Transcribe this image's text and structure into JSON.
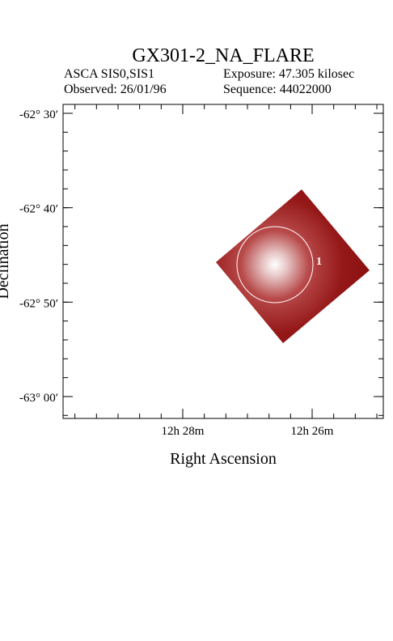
{
  "chart_data": {
    "type": "image",
    "title": "GX301-2_NA_FLARE",
    "instrument": "ASCA SIS0,SIS1",
    "exposure": "Exposure: 47.305 kilosec",
    "observed": "Observed: 26/01/96",
    "sequence": "Sequence: 44022000",
    "x_label": "Right Ascension",
    "y_label": "Declination",
    "xlim": [
      12.4975,
      12.415
    ],
    "ylim": [
      -63.0386,
      -62.4843
    ],
    "xticks": [
      {
        "value": 12.46667,
        "label": "12h 28m"
      },
      {
        "value": 12.43333,
        "label": "12h 26m"
      }
    ],
    "yticks": [
      {
        "value": -62.5,
        "label": "-62° 30′"
      },
      {
        "value": -62.66667,
        "label": "-62° 40′"
      },
      {
        "value": -62.83333,
        "label": "-62° 50′"
      },
      {
        "value": -63,
        "label": "-63° 00′"
      }
    ],
    "regions": [
      {
        "label": "1"
      }
    ]
  }
}
